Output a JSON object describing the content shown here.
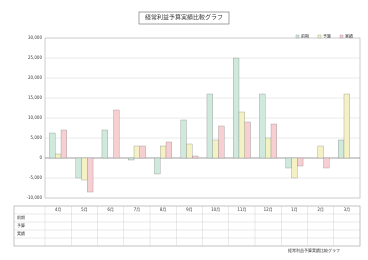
{
  "chart_data": {
    "type": "bar",
    "title": "経常利益予算実績比較グラフ",
    "categories": [
      "4月",
      "5月",
      "6月",
      "7月",
      "8月",
      "9月",
      "10月",
      "11月",
      "12月",
      "1月",
      "2月",
      "3月"
    ],
    "series": [
      {
        "name": "前期",
        "color": "#cfe9dc",
        "values": [
          6250,
          -5000,
          7000,
          -500,
          -4000,
          9500,
          16000,
          25000,
          16000,
          -2500,
          0,
          4500
        ]
      },
      {
        "name": "予算",
        "color": "#f4f2c4",
        "values": [
          1000,
          -5500,
          0,
          3000,
          3000,
          3500,
          4500,
          11500,
          5000,
          -5000,
          3000,
          16000
        ]
      },
      {
        "name": "実績",
        "color": "#f7cfd3",
        "values": [
          7000,
          -8500,
          12000,
          3000,
          4000,
          500,
          8000,
          9000,
          8500,
          -2000,
          -2500,
          0
        ]
      }
    ],
    "ylim": [
      -10000,
      30000
    ],
    "yticks": [
      {
        "value": -10000,
        "label": "-10,000"
      },
      {
        "value": -5000,
        "label": "-5,000"
      },
      0,
      {
        "value": 5000,
        "label": "5,000"
      },
      {
        "value": 10000,
        "label": "10,000"
      },
      {
        "value": 15000,
        "label": "15,000"
      },
      {
        "value": 20000,
        "label": "20,000"
      },
      {
        "value": 25000,
        "label": "25,000"
      },
      {
        "value": 30000,
        "label": "30,000"
      }
    ],
    "grid": true
  }
}
